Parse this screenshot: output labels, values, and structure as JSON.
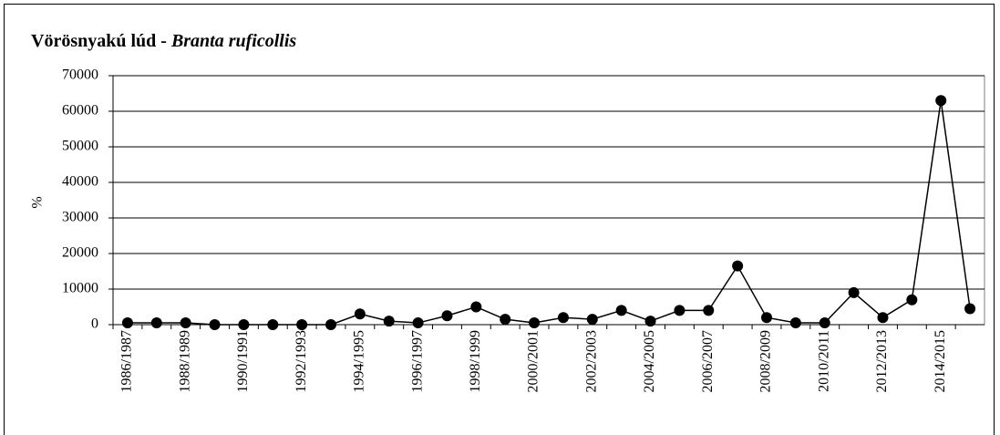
{
  "chart_data": {
    "type": "line",
    "title": "Vörösnyakú lúd -",
    "title_italic": "Branta ruficollis",
    "y_label": "%",
    "categories": [
      "1986/1987",
      null,
      "1988/1989",
      null,
      "1990/1991",
      null,
      "1992/1993",
      null,
      "1994/1995",
      null,
      "1996/1997",
      null,
      "1998/1999",
      null,
      "2000/2001",
      null,
      "2002/2003",
      null,
      "2004/2005",
      null,
      "2006/2007",
      null,
      "2008/2009",
      null,
      "2010/2011",
      null,
      "2012/2013",
      null,
      "2014/2015",
      null
    ],
    "series": [
      {
        "color": "#000000",
        "values": [
          500,
          500,
          500,
          0,
          0,
          0,
          0,
          0,
          3000,
          1000,
          500,
          2500,
          5000,
          1500,
          500,
          2000,
          1500,
          4000,
          1000,
          4000,
          4000,
          16500,
          2000,
          500,
          500,
          9000,
          2000,
          7000,
          63000,
          4500
        ]
      }
    ],
    "ylim": [
      0,
      70000
    ],
    "yticks": [
      0,
      10000,
      20000,
      30000,
      40000,
      50000,
      60000,
      70000
    ],
    "grid": true
  }
}
